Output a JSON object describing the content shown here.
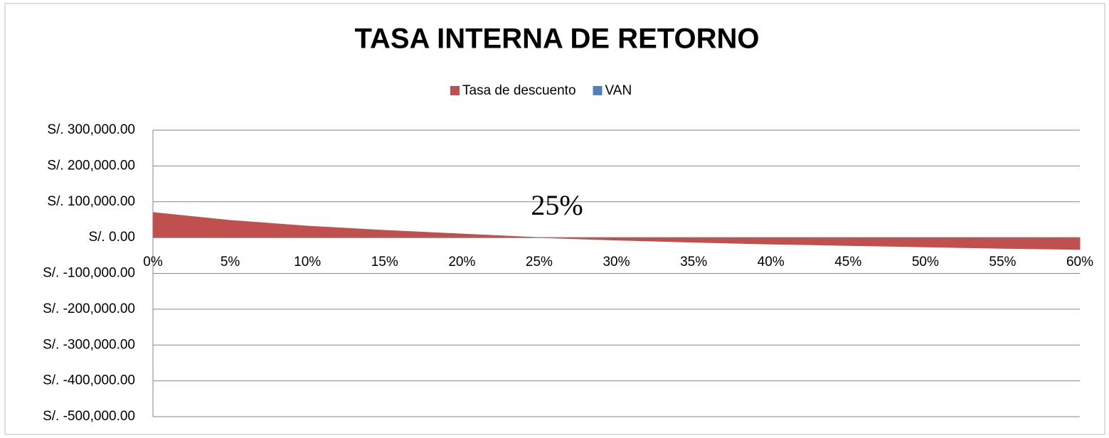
{
  "chart_data": {
    "type": "area",
    "title": "TASA INTERNA DE RETORNO",
    "categories": [
      "0%",
      "5%",
      "10%",
      "15%",
      "20%",
      "25%",
      "30%",
      "35%",
      "40%",
      "45%",
      "50%",
      "55%",
      "60%"
    ],
    "series": [
      {
        "name": "Tasa de descuento",
        "color": "#c0504d",
        "values": [
          70000,
          48000,
          32000,
          20000,
          10000,
          0,
          -7000,
          -13000,
          -18000,
          -22000,
          -26000,
          -30000,
          -33000
        ]
      },
      {
        "name": "VAN",
        "color": "#4f81bd",
        "values": [
          0,
          0,
          0,
          0,
          0,
          0,
          0,
          0,
          0,
          0,
          0,
          0,
          0
        ]
      }
    ],
    "annotation": "25%",
    "ylim": [
      -500000,
      300000
    ],
    "yticks": [
      {
        "value": -500000,
        "label": "S/. -500,000.00"
      },
      {
        "value": -400000,
        "label": "S/. -400,000.00"
      },
      {
        "value": -300000,
        "label": "S/. -300,000.00"
      },
      {
        "value": -200000,
        "label": "S/. -200,000.00"
      },
      {
        "value": -100000,
        "label": "S/. -100,000.00"
      },
      {
        "value": 0,
        "label": "S/. 0.00"
      },
      {
        "value": 100000,
        "label": "S/. 100,000.00"
      },
      {
        "value": 200000,
        "label": "S/. 200,000.00"
      },
      {
        "value": 300000,
        "label": "S/. 300,000.00"
      }
    ],
    "negative_label_color": "#ff0000",
    "grid": true,
    "legend": "top"
  }
}
